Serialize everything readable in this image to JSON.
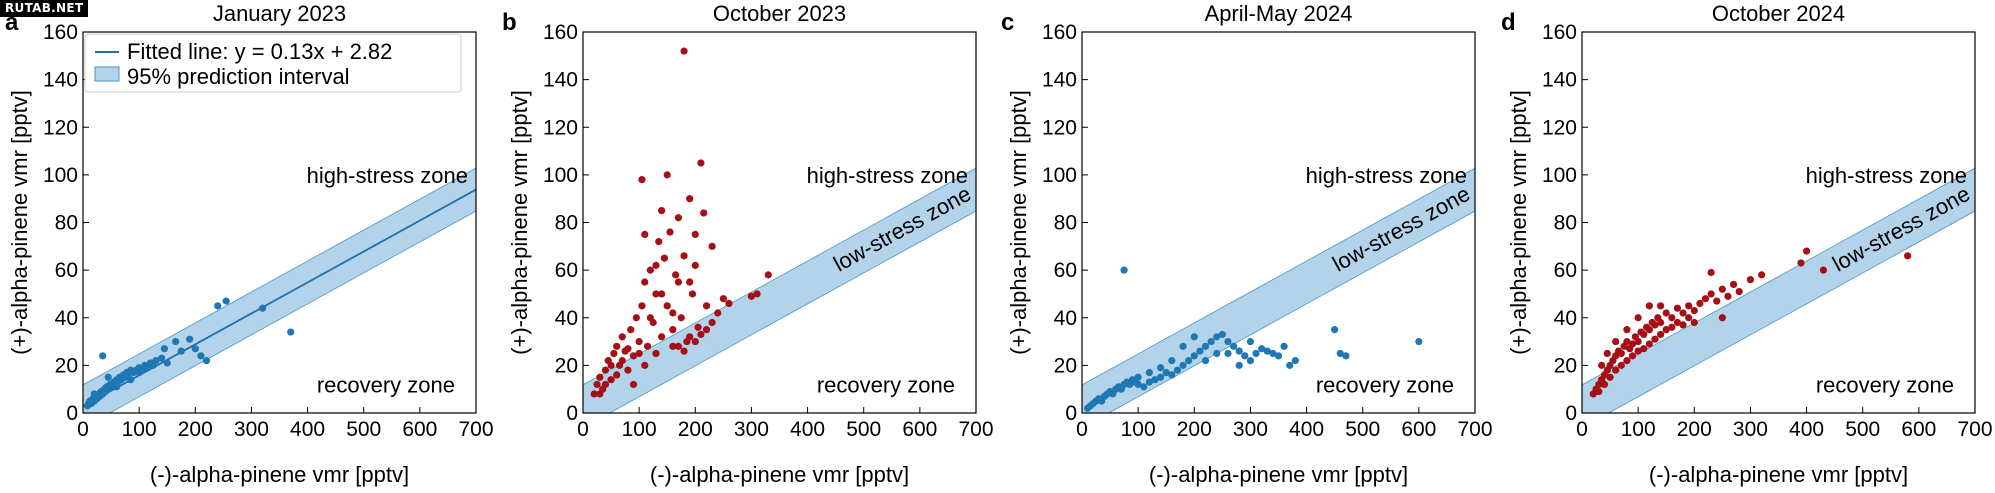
{
  "watermark": "RUTAB.NET",
  "colors": {
    "band_fill": "#b3d3ea",
    "band_edge": "#4f95c5",
    "fit_line": "#1f6fae",
    "point_blue": "#1f77b4",
    "point_red": "#a50f15",
    "axis": "#000000"
  },
  "chart_data": [
    {
      "type": "scatter",
      "panel": "a",
      "title": "January 2023",
      "xlabel": "(-)-alpha-pinene vmr [pptv]",
      "ylabel": "(+)-alpha-pinene vmr [pptv]",
      "xlim": [
        0,
        700
      ],
      "ylim": [
        0,
        160
      ],
      "xticks": [
        0,
        100,
        200,
        300,
        400,
        500,
        600,
        700
      ],
      "yticks": [
        0,
        20,
        40,
        60,
        80,
        100,
        120,
        140,
        160
      ],
      "fit": {
        "slope": 0.13,
        "intercept": 2.82,
        "pi_halfwidth": 9
      },
      "show_fit_line": true,
      "legend": {
        "position": "top-left",
        "entries": [
          "Fitted line: y = 0.13x + 2.82",
          "95% prediction interval"
        ]
      },
      "zone_labels": {
        "high": "high-stress zone",
        "recovery": "recovery zone"
      },
      "point_color": "point_blue",
      "points": [
        [
          8,
          3
        ],
        [
          10,
          4
        ],
        [
          12,
          5
        ],
        [
          15,
          4
        ],
        [
          18,
          6
        ],
        [
          20,
          5
        ],
        [
          22,
          7
        ],
        [
          25,
          6
        ],
        [
          28,
          8
        ],
        [
          30,
          7
        ],
        [
          32,
          9
        ],
        [
          35,
          8
        ],
        [
          38,
          10
        ],
        [
          40,
          9
        ],
        [
          42,
          11
        ],
        [
          45,
          10
        ],
        [
          48,
          12
        ],
        [
          50,
          11
        ],
        [
          52,
          12
        ],
        [
          55,
          13
        ],
        [
          58,
          12
        ],
        [
          60,
          14
        ],
        [
          62,
          13
        ],
        [
          65,
          15
        ],
        [
          68,
          14
        ],
        [
          70,
          15
        ],
        [
          72,
          16
        ],
        [
          75,
          15
        ],
        [
          78,
          17
        ],
        [
          80,
          16
        ],
        [
          85,
          18
        ],
        [
          90,
          17
        ],
        [
          95,
          18
        ],
        [
          100,
          19
        ],
        [
          105,
          18
        ],
        [
          110,
          20
        ],
        [
          115,
          19
        ],
        [
          120,
          21
        ],
        [
          125,
          20
        ],
        [
          130,
          22
        ],
        [
          140,
          23
        ],
        [
          145,
          27
        ],
        [
          150,
          21
        ],
        [
          165,
          30
        ],
        [
          175,
          26
        ],
        [
          190,
          31
        ],
        [
          200,
          27
        ],
        [
          210,
          24
        ],
        [
          220,
          22
        ],
        [
          240,
          45
        ],
        [
          255,
          47
        ],
        [
          320,
          44
        ],
        [
          370,
          34
        ],
        [
          35,
          24
        ],
        [
          20,
          8
        ],
        [
          45,
          15
        ],
        [
          60,
          11
        ],
        [
          100,
          17
        ],
        [
          85,
          14
        ]
      ]
    },
    {
      "type": "scatter",
      "panel": "b",
      "title": "October 2023",
      "xlabel": "(-)-alpha-pinene vmr [pptv]",
      "ylabel": "(+)-alpha-pinene vmr [pptv]",
      "xlim": [
        0,
        700
      ],
      "ylim": [
        0,
        160
      ],
      "xticks": [
        0,
        100,
        200,
        300,
        400,
        500,
        600,
        700
      ],
      "yticks": [
        0,
        20,
        40,
        60,
        80,
        100,
        120,
        140,
        160
      ],
      "fit": {
        "slope": 0.13,
        "intercept": 2.82,
        "pi_halfwidth": 9
      },
      "show_fit_line": false,
      "zone_labels": {
        "high": "high-stress zone",
        "low": "low-stress zone",
        "recovery": "recovery zone"
      },
      "point_color": "point_red",
      "points": [
        [
          20,
          8
        ],
        [
          25,
          12
        ],
        [
          30,
          15
        ],
        [
          35,
          10
        ],
        [
          40,
          18
        ],
        [
          45,
          22
        ],
        [
          50,
          14
        ],
        [
          55,
          25
        ],
        [
          60,
          28
        ],
        [
          65,
          20
        ],
        [
          70,
          32
        ],
        [
          75,
          26
        ],
        [
          80,
          18
        ],
        [
          85,
          35
        ],
        [
          90,
          24
        ],
        [
          95,
          40
        ],
        [
          100,
          30
        ],
        [
          105,
          45
        ],
        [
          110,
          55
        ],
        [
          115,
          28
        ],
        [
          120,
          60
        ],
        [
          125,
          38
        ],
        [
          130,
          50
        ],
        [
          135,
          72
        ],
        [
          140,
          32
        ],
        [
          145,
          65
        ],
        [
          150,
          45
        ],
        [
          155,
          76
        ],
        [
          160,
          35
        ],
        [
          165,
          58
        ],
        [
          170,
          82
        ],
        [
          175,
          40
        ],
        [
          180,
          66
        ],
        [
          185,
          30
        ],
        [
          190,
          90
        ],
        [
          195,
          50
        ],
        [
          200,
          62
        ],
        [
          205,
          36
        ],
        [
          210,
          105
        ],
        [
          215,
          84
        ],
        [
          220,
          45
        ],
        [
          230,
          70
        ],
        [
          240,
          42
        ],
        [
          250,
          48
        ],
        [
          260,
          46
        ],
        [
          300,
          49
        ],
        [
          310,
          50
        ],
        [
          330,
          58
        ],
        [
          180,
          152
        ],
        [
          105,
          98
        ],
        [
          150,
          100
        ],
        [
          200,
          75
        ],
        [
          120,
          40
        ],
        [
          140,
          50
        ],
        [
          160,
          28
        ],
        [
          60,
          16
        ],
        [
          70,
          22
        ],
        [
          90,
          12
        ],
        [
          110,
          20
        ],
        [
          130,
          25
        ],
        [
          170,
          28
        ],
        [
          190,
          32
        ],
        [
          210,
          33
        ],
        [
          220,
          35
        ],
        [
          230,
          38
        ],
        [
          100,
          25
        ],
        [
          80,
          27
        ],
        [
          50,
          20
        ],
        [
          40,
          12
        ],
        [
          30,
          8
        ],
        [
          180,
          26
        ],
        [
          160,
          42
        ],
        [
          130,
          62
        ],
        [
          110,
          75
        ],
        [
          140,
          85
        ],
        [
          190,
          55
        ],
        [
          170,
          55
        ],
        [
          200,
          30
        ]
      ]
    },
    {
      "type": "scatter",
      "panel": "c",
      "title": "April-May 2024",
      "xlabel": "(-)-alpha-pinene vmr [pptv]",
      "ylabel": "(+)-alpha-pinene vmr [pptv]",
      "xlim": [
        0,
        700
      ],
      "ylim": [
        0,
        160
      ],
      "xticks": [
        0,
        100,
        200,
        300,
        400,
        500,
        600,
        700
      ],
      "yticks": [
        0,
        20,
        40,
        60,
        80,
        100,
        120,
        140,
        160
      ],
      "fit": {
        "slope": 0.13,
        "intercept": 2.82,
        "pi_halfwidth": 9
      },
      "show_fit_line": false,
      "zone_labels": {
        "high": "high-stress zone",
        "low": "low-stress zone",
        "recovery": "recovery zone"
      },
      "point_color": "point_blue",
      "points": [
        [
          10,
          2
        ],
        [
          15,
          3
        ],
        [
          20,
          4
        ],
        [
          25,
          5
        ],
        [
          30,
          6
        ],
        [
          35,
          5
        ],
        [
          40,
          7
        ],
        [
          45,
          8
        ],
        [
          50,
          9
        ],
        [
          55,
          8
        ],
        [
          60,
          10
        ],
        [
          65,
          11
        ],
        [
          70,
          10
        ],
        [
          75,
          12
        ],
        [
          80,
          13
        ],
        [
          85,
          12
        ],
        [
          90,
          14
        ],
        [
          95,
          13
        ],
        [
          100,
          12
        ],
        [
          110,
          11
        ],
        [
          120,
          13
        ],
        [
          130,
          14
        ],
        [
          140,
          15
        ],
        [
          150,
          17
        ],
        [
          160,
          16
        ],
        [
          170,
          18
        ],
        [
          180,
          20
        ],
        [
          190,
          22
        ],
        [
          200,
          24
        ],
        [
          210,
          26
        ],
        [
          220,
          28
        ],
        [
          230,
          30
        ],
        [
          240,
          32
        ],
        [
          250,
          33
        ],
        [
          260,
          30
        ],
        [
          270,
          28
        ],
        [
          280,
          26
        ],
        [
          290,
          24
        ],
        [
          300,
          22
        ],
        [
          310,
          25
        ],
        [
          320,
          27
        ],
        [
          330,
          26
        ],
        [
          340,
          25
        ],
        [
          350,
          24
        ],
        [
          360,
          28
        ],
        [
          370,
          20
        ],
        [
          380,
          22
        ],
        [
          450,
          35
        ],
        [
          460,
          25
        ],
        [
          470,
          24
        ],
        [
          600,
          30
        ],
        [
          75,
          60
        ],
        [
          200,
          32
        ],
        [
          220,
          22
        ],
        [
          240,
          25
        ],
        [
          180,
          28
        ],
        [
          160,
          22
        ],
        [
          140,
          19
        ],
        [
          120,
          17
        ],
        [
          100,
          15
        ],
        [
          300,
          30
        ],
        [
          280,
          20
        ],
        [
          260,
          25
        ]
      ]
    },
    {
      "type": "scatter",
      "panel": "d",
      "title": "October 2024",
      "xlabel": "(-)-alpha-pinene vmr [pptv]",
      "ylabel": "(+)-alpha-pinene vmr [pptv]",
      "xlim": [
        0,
        700
      ],
      "ylim": [
        0,
        160
      ],
      "xticks": [
        0,
        100,
        200,
        300,
        400,
        500,
        600,
        700
      ],
      "yticks": [
        0,
        20,
        40,
        60,
        80,
        100,
        120,
        140,
        160
      ],
      "fit": {
        "slope": 0.13,
        "intercept": 2.82,
        "pi_halfwidth": 9
      },
      "show_fit_line": false,
      "zone_labels": {
        "high": "high-stress zone",
        "low": "low-stress zone",
        "recovery": "recovery zone"
      },
      "point_color": "point_red",
      "points": [
        [
          20,
          8
        ],
        [
          25,
          10
        ],
        [
          30,
          12
        ],
        [
          35,
          14
        ],
        [
          40,
          16
        ],
        [
          45,
          18
        ],
        [
          50,
          20
        ],
        [
          55,
          22
        ],
        [
          60,
          24
        ],
        [
          65,
          26
        ],
        [
          70,
          25
        ],
        [
          75,
          28
        ],
        [
          80,
          30
        ],
        [
          85,
          27
        ],
        [
          90,
          29
        ],
        [
          95,
          32
        ],
        [
          100,
          30
        ],
        [
          105,
          34
        ],
        [
          110,
          33
        ],
        [
          115,
          36
        ],
        [
          120,
          35
        ],
        [
          125,
          38
        ],
        [
          130,
          37
        ],
        [
          135,
          40
        ],
        [
          140,
          38
        ],
        [
          150,
          42
        ],
        [
          160,
          40
        ],
        [
          170,
          44
        ],
        [
          180,
          42
        ],
        [
          190,
          45
        ],
        [
          200,
          43
        ],
        [
          210,
          46
        ],
        [
          220,
          48
        ],
        [
          230,
          50
        ],
        [
          240,
          47
        ],
        [
          250,
          52
        ],
        [
          260,
          49
        ],
        [
          270,
          54
        ],
        [
          280,
          51
        ],
        [
          300,
          56
        ],
        [
          320,
          58
        ],
        [
          390,
          63
        ],
        [
          400,
          68
        ],
        [
          430,
          60
        ],
        [
          580,
          66
        ],
        [
          50,
          15
        ],
        [
          60,
          18
        ],
        [
          70,
          20
        ],
        [
          80,
          22
        ],
        [
          90,
          24
        ],
        [
          100,
          26
        ],
        [
          110,
          27
        ],
        [
          120,
          29
        ],
        [
          130,
          31
        ],
        [
          140,
          33
        ],
        [
          40,
          12
        ],
        [
          30,
          9
        ],
        [
          150,
          35
        ],
        [
          160,
          36
        ],
        [
          170,
          38
        ],
        [
          180,
          37
        ],
        [
          190,
          40
        ],
        [
          200,
          38
        ],
        [
          230,
          59
        ],
        [
          120,
          45
        ],
        [
          100,
          40
        ],
        [
          80,
          35
        ],
        [
          60,
          30
        ],
        [
          140,
          45
        ],
        [
          250,
          40
        ],
        [
          35,
          20
        ],
        [
          45,
          25
        ]
      ]
    }
  ]
}
